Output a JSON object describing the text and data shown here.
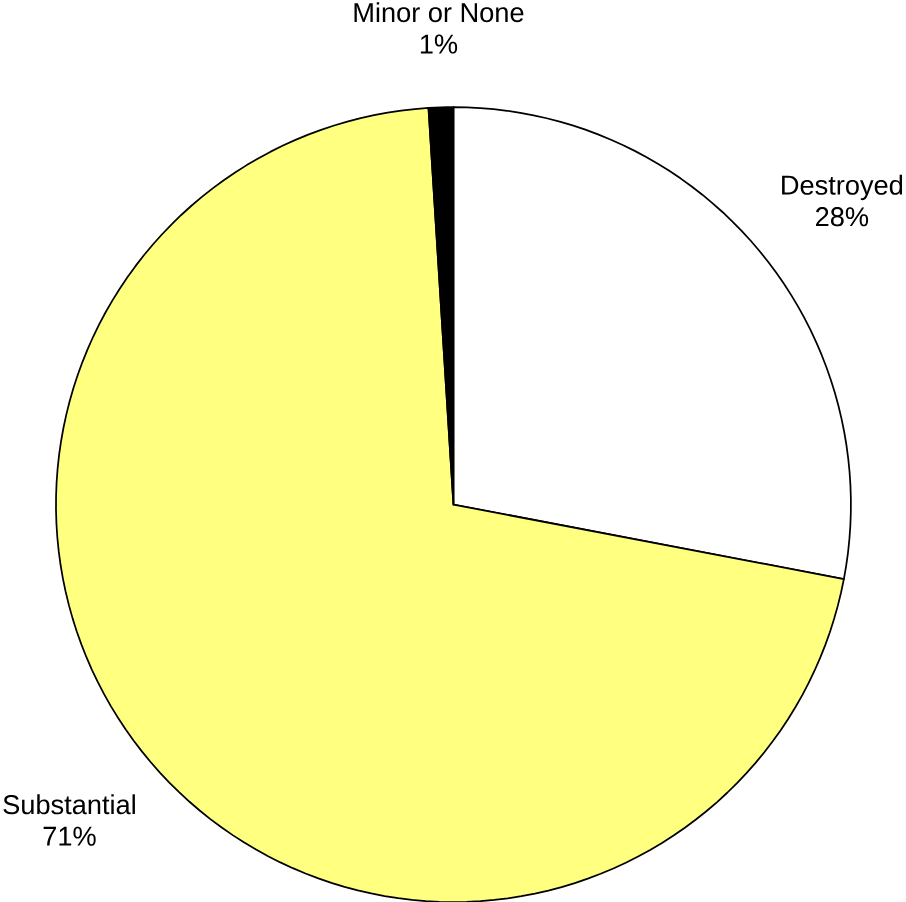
{
  "chart_data": {
    "type": "pie",
    "categories": [
      "Destroyed",
      "Substantial",
      "Minor or None"
    ],
    "values": [
      28,
      71,
      1
    ],
    "value_labels": [
      "28%",
      "71%",
      "1%"
    ],
    "colors": [
      "#ffffff",
      "#ffff80",
      "#000000"
    ]
  }
}
